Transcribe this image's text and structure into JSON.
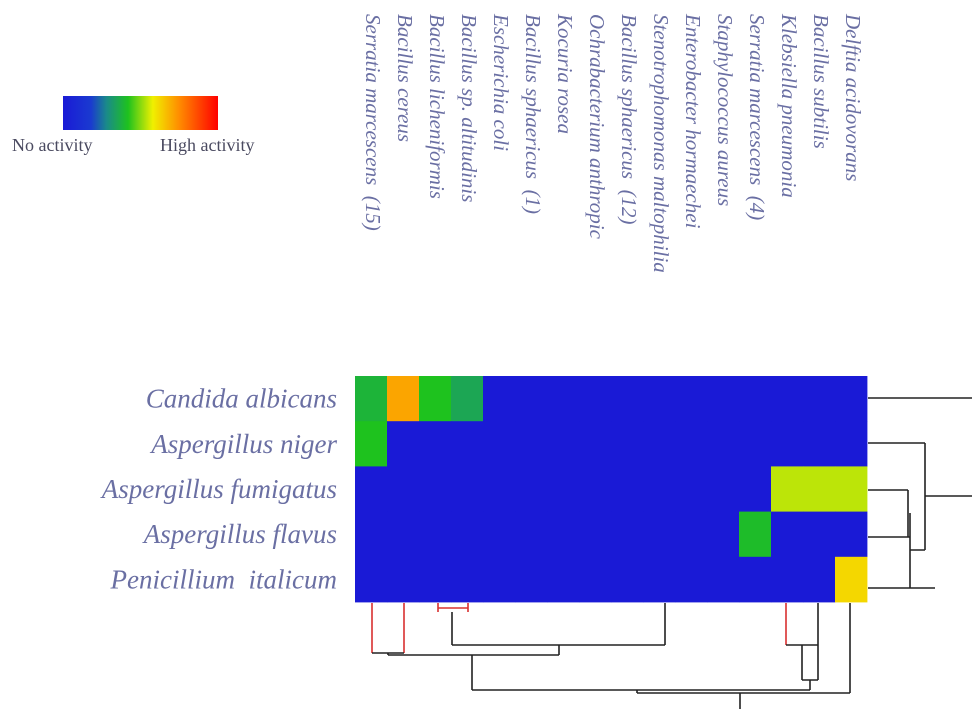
{
  "chart_data": {
    "type": "heatmap",
    "columns": [
      "Serratia marcescens  (15)",
      "Bacillus cereus",
      "Bacillus licheniformis",
      "Bacillus sp. altitudinis",
      "Escherichia coli",
      "Bacillus sphaericus  (1)",
      "Kocuria rosea",
      "Ochrabacterium anthropic",
      "Bacillus sphaericus  (12)",
      "Stenotrophomonas maltophilia",
      "Enterobacter hormaechei",
      "Staphylococcus aureus",
      "Serratia marcescens  (4)",
      "Klebsiella pneumonia",
      "Bacillus subtilis",
      "Delftia acidovorans"
    ],
    "rows": [
      "Candida albicans",
      "Aspergillus niger",
      "Aspergillus fumigatus",
      "Aspergillus flavus",
      "Penicillium  italicum"
    ],
    "values": [
      [
        0.35,
        0.75,
        0.4,
        0.3,
        0,
        0,
        0,
        0,
        0,
        0,
        0,
        0,
        0,
        0,
        0,
        0
      ],
      [
        0.4,
        0,
        0,
        0,
        0,
        0,
        0,
        0,
        0,
        0,
        0,
        0,
        0,
        0,
        0,
        0
      ],
      [
        0,
        0,
        0,
        0,
        0,
        0,
        0,
        0,
        0,
        0,
        0,
        0,
        0,
        0.55,
        0.55,
        0.55
      ],
      [
        0,
        0,
        0,
        0,
        0,
        0,
        0,
        0,
        0,
        0,
        0,
        0,
        0.38,
        0,
        0,
        0
      ],
      [
        0,
        0,
        0,
        0,
        0,
        0,
        0,
        0,
        0,
        0,
        0,
        0,
        0,
        0,
        0,
        0.65
      ]
    ],
    "value_range": [
      0,
      1
    ],
    "colormap": [
      "#1a1ad6",
      "#1a8a8a",
      "#1ec21e",
      "#f0f000",
      "#ff8c00",
      "#ff0000"
    ],
    "legend": {
      "low_label": "No activity",
      "high_label": "High activity",
      "placement": "top-left"
    },
    "row_dendrogram": "right",
    "column_dendrogram": "bottom"
  }
}
